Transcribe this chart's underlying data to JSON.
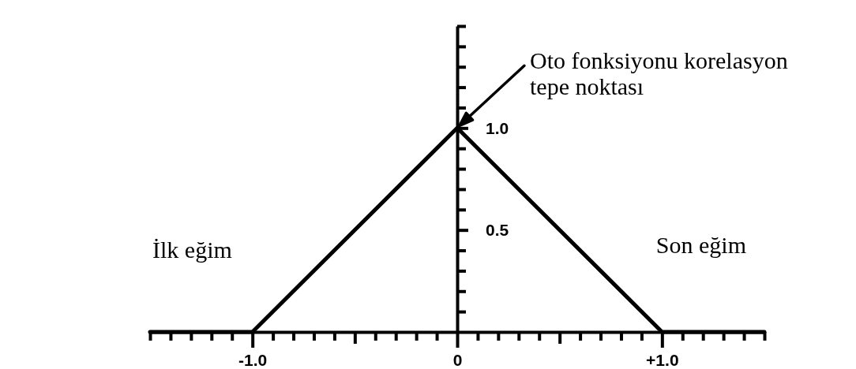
{
  "chart_data": {
    "type": "line",
    "line_style": "solid",
    "x": [
      -1.5,
      -1.0,
      0,
      1.0,
      1.5
    ],
    "series": [
      {
        "color": "#000000",
        "values": [
          0,
          0,
          1.0,
          0,
          0
        ]
      }
    ],
    "xlim": [
      -1.5,
      1.5
    ],
    "ylim": [
      0,
      1.5
    ],
    "xticks": [
      {
        "value": -1.5,
        "label": null
      },
      {
        "value": -1.4,
        "label": null
      },
      {
        "value": -1.3,
        "label": null
      },
      {
        "value": -1.2,
        "label": null
      },
      {
        "value": -1.1,
        "label": null
      },
      {
        "value": -1.0,
        "label": "-1.0"
      },
      {
        "value": -0.9,
        "label": null
      },
      {
        "value": -0.8,
        "label": null
      },
      {
        "value": -0.7,
        "label": null
      },
      {
        "value": -0.6,
        "label": null
      },
      {
        "value": -0.5,
        "label": null
      },
      {
        "value": -0.4,
        "label": null
      },
      {
        "value": -0.3,
        "label": null
      },
      {
        "value": -0.2,
        "label": null
      },
      {
        "value": -0.1,
        "label": null
      },
      0,
      {
        "value": 0.1,
        "label": null
      },
      {
        "value": 0.2,
        "label": null
      },
      {
        "value": 0.3,
        "label": null
      },
      {
        "value": 0.4,
        "label": null
      },
      {
        "value": 0.5,
        "label": null
      },
      {
        "value": 0.6,
        "label": null
      },
      {
        "value": 0.7,
        "label": null
      },
      {
        "value": 0.8,
        "label": null
      },
      {
        "value": 0.9,
        "label": null
      },
      {
        "value": 1.0,
        "label": "+1.0"
      },
      {
        "value": 1.1,
        "label": null
      },
      {
        "value": 1.2,
        "label": null
      },
      {
        "value": 1.3,
        "label": null
      },
      {
        "value": 1.4,
        "label": null
      },
      {
        "value": 1.5,
        "label": null
      }
    ],
    "yticks": [
      {
        "value": 0.1,
        "label": null
      },
      {
        "value": 0.2,
        "label": null
      },
      {
        "value": 0.3,
        "label": null
      },
      {
        "value": 0.4,
        "label": null
      },
      {
        "value": 0.5,
        "label": "0.5"
      },
      {
        "value": 0.6,
        "label": null
      },
      {
        "value": 0.7,
        "label": null
      },
      {
        "value": 0.8,
        "label": null
      },
      {
        "value": 0.9,
        "label": null
      },
      {
        "value": 1.0,
        "label": "1.0"
      },
      {
        "value": 1.1,
        "label": null
      },
      {
        "value": 1.2,
        "label": null
      },
      {
        "value": 1.3,
        "label": null
      },
      {
        "value": 1.4,
        "label": null
      },
      {
        "value": 1.5,
        "label": null
      }
    ],
    "annotations": [
      {
        "text": "Oto fonksiyonu korelasyon tepe noktası",
        "x": 0,
        "y": 1.0
      },
      "İlk eğim",
      "Son eğim"
    ]
  }
}
